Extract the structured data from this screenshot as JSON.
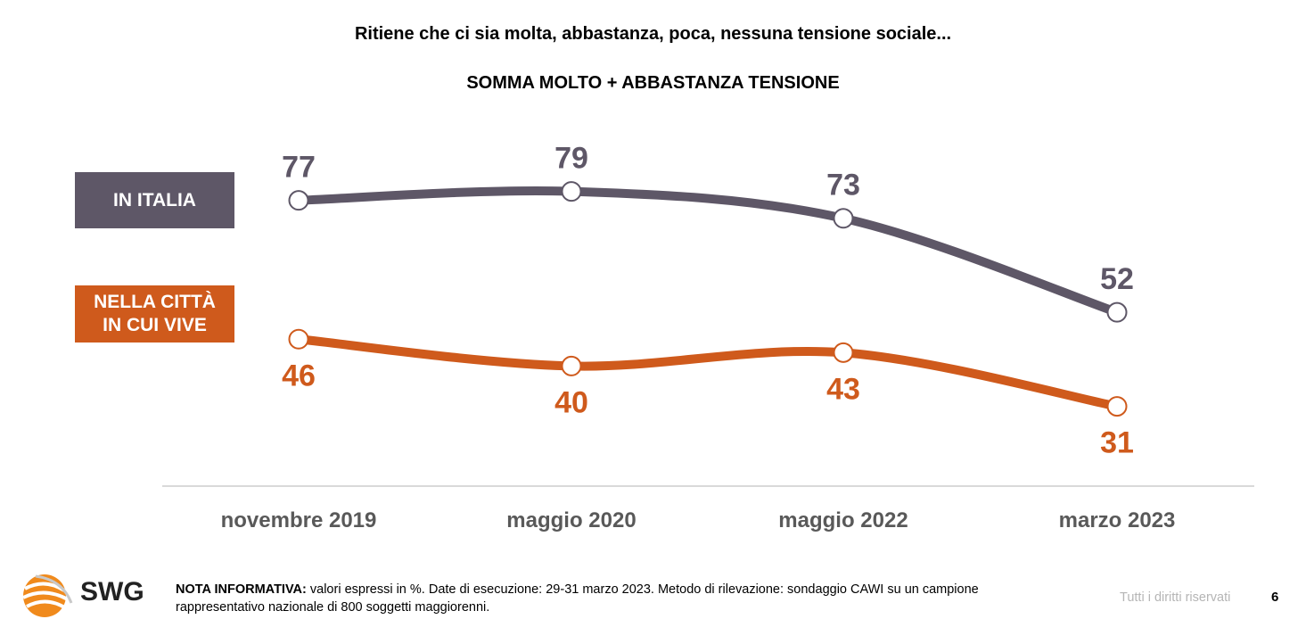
{
  "question": "Ritiene che ci sia molta, abbastanza, poca, nessuna tensione sociale...",
  "subtitle": "SOMMA MOLTO + ABBASTANZA TENSIONE",
  "chart_data": {
    "type": "line",
    "categories": [
      "novembre 2019",
      "maggio 2020",
      "maggio 2022",
      "marzo 2023"
    ],
    "series": [
      {
        "name": "IN ITALIA",
        "values": [
          77,
          79,
          73,
          52
        ],
        "color": "#5e5767"
      },
      {
        "name": "NELLA CITTÀ IN CUI VIVE",
        "values": [
          46,
          40,
          43,
          31
        ],
        "color": "#cf5a1c"
      }
    ],
    "grid": false,
    "legend": "left"
  },
  "legend": {
    "italia": "IN ITALIA",
    "citta_line1": "NELLA CITTÀ",
    "citta_line2": "IN CUI VIVE"
  },
  "footer": {
    "note_label": "NOTA INFORMATIVA:",
    "note_text": " valori espressi in %. Date di esecuzione: 29-31 marzo 2023. Metodo di rilevazione: sondaggio CAWI su un campione rappresentativo nazionale di 800 soggetti maggiorenni.",
    "rights": "Tutti i diritti riservati",
    "page": "6",
    "logo_text": "SWG"
  }
}
